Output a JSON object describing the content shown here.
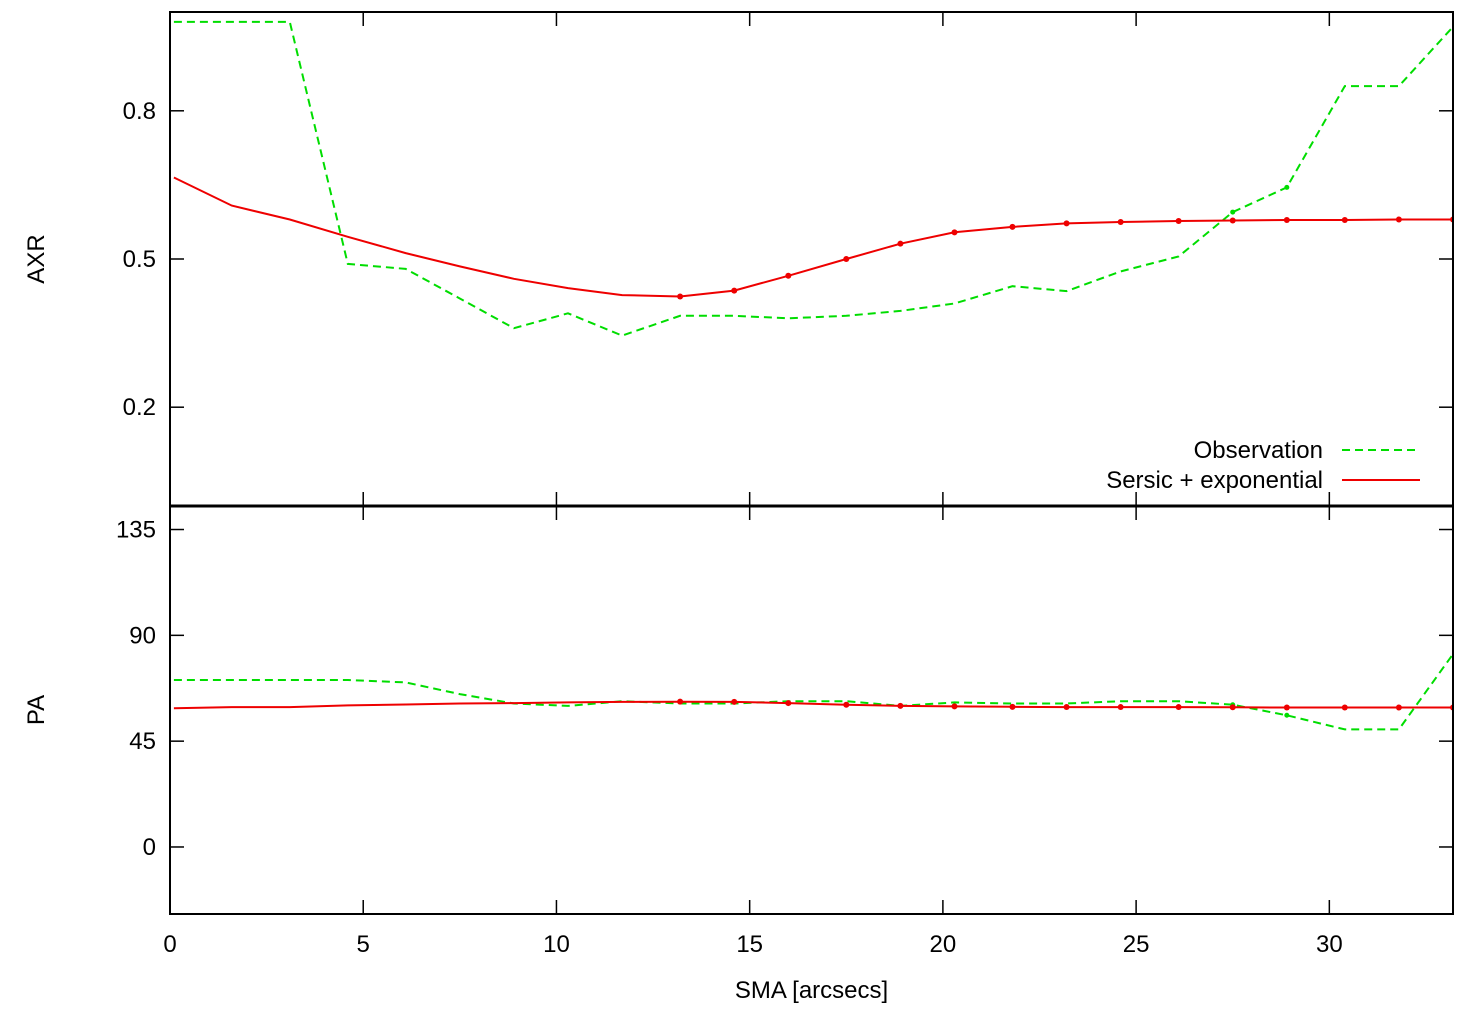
{
  "chart_data": [
    {
      "type": "line",
      "panel": "top",
      "ylabel": "AXR",
      "xlabel": "",
      "xlim": [
        0,
        33.2
      ],
      "ylim": [
        0,
        1.0
      ],
      "yticks": [
        0.2,
        0.5,
        0.8
      ],
      "ytick_labels": [
        "0.2",
        "0.5",
        "0.8"
      ],
      "legend_position": "bottom-right",
      "series": [
        {
          "name": "Observation",
          "color": "#00dd00",
          "dash": "dashed",
          "x": [
            0.1,
            1.6,
            3.1,
            4.6,
            6.1,
            7.5,
            8.9,
            10.3,
            11.7,
            13.2,
            14.6,
            16.0,
            17.5,
            18.9,
            20.3,
            21.8,
            23.2,
            24.6,
            26.1,
            27.5,
            28.9,
            30.4,
            31.8,
            33.2
          ],
          "y": [
            0.98,
            0.98,
            0.98,
            0.49,
            0.48,
            0.42,
            0.36,
            0.39,
            0.345,
            0.385,
            0.385,
            0.38,
            0.385,
            0.395,
            0.41,
            0.445,
            0.435,
            0.475,
            0.505,
            0.595,
            0.645,
            0.85,
            0.85,
            0.97
          ]
        },
        {
          "name": "Sersic + exponential",
          "color": "#ee0000",
          "dash": "solid",
          "x": [
            0.1,
            1.6,
            3.1,
            4.6,
            6.1,
            7.5,
            8.9,
            10.3,
            11.7,
            13.2,
            14.6,
            16.0,
            17.5,
            18.9,
            20.3,
            21.8,
            23.2,
            24.6,
            26.1,
            27.5,
            28.9,
            30.4,
            31.8,
            33.2
          ],
          "y": [
            0.665,
            0.608,
            0.58,
            0.545,
            0.512,
            0.485,
            0.46,
            0.441,
            0.427,
            0.424,
            0.436,
            0.466,
            0.5,
            0.531,
            0.554,
            0.565,
            0.572,
            0.575,
            0.577,
            0.578,
            0.579,
            0.579,
            0.58,
            0.58
          ]
        }
      ]
    },
    {
      "type": "line",
      "panel": "bottom",
      "ylabel": "PA",
      "xlabel": "SMA [arcsecs]",
      "xlim": [
        0,
        33.2
      ],
      "ylim": [
        -28.5,
        145
      ],
      "xticks": [
        0,
        5,
        10,
        15,
        20,
        25,
        30
      ],
      "xtick_labels": [
        "0",
        "5",
        "10",
        "15",
        "20",
        "25",
        "30"
      ],
      "yticks": [
        0,
        45,
        90,
        135
      ],
      "ytick_labels": [
        "0",
        "45",
        "90",
        "135"
      ],
      "series": [
        {
          "name": "Observation",
          "color": "#00dd00",
          "dash": "dashed",
          "x": [
            0.1,
            1.6,
            3.1,
            4.6,
            6.1,
            7.5,
            8.9,
            10.3,
            11.7,
            13.2,
            14.6,
            16.0,
            17.5,
            18.9,
            20.3,
            21.8,
            23.2,
            24.6,
            26.1,
            27.5,
            28.9,
            30.4,
            31.8,
            33.2
          ],
          "y": [
            71,
            71,
            71,
            71,
            70,
            65,
            61,
            60,
            62,
            61,
            61,
            62,
            62,
            60,
            61.5,
            61,
            61,
            62,
            62,
            60.5,
            56,
            50,
            50,
            82
          ]
        },
        {
          "name": "Sersic + exponential",
          "color": "#ee0000",
          "dash": "solid",
          "x": [
            0.1,
            1.6,
            3.1,
            4.6,
            6.1,
            7.5,
            8.9,
            10.3,
            11.7,
            13.2,
            14.6,
            16.0,
            17.5,
            18.9,
            20.3,
            21.8,
            23.2,
            24.6,
            26.1,
            27.5,
            28.9,
            30.4,
            31.8,
            33.2
          ],
          "y": [
            59,
            59.5,
            59.5,
            60.2,
            60.6,
            61,
            61.2,
            61.5,
            61.7,
            61.8,
            61.7,
            61.2,
            60.5,
            60,
            59.8,
            59.6,
            59.5,
            59.5,
            59.5,
            59.4,
            59.3,
            59.3,
            59.3,
            59.3
          ]
        }
      ]
    }
  ]
}
